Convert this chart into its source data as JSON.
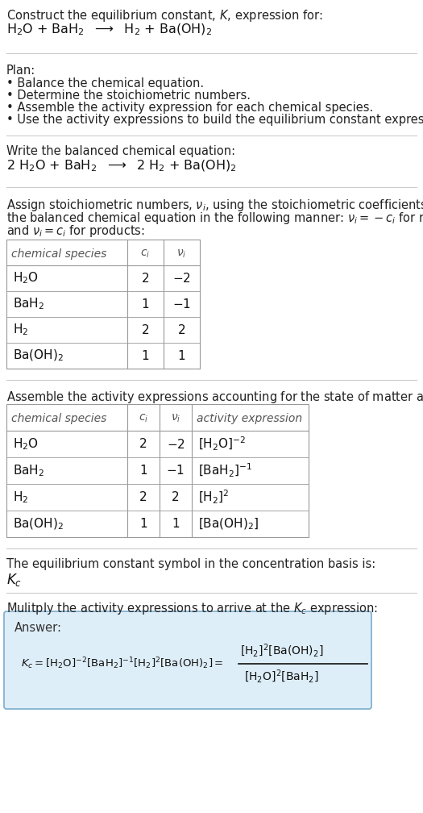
{
  "title_line1": "Construct the equilibrium constant, $K$, expression for:",
  "reaction_unbalanced": "H$_2$O + BaH$_2$  $\\longrightarrow$  H$_2$ + Ba(OH)$_2$",
  "plan_header": "Plan:",
  "plan_bullets": [
    "• Balance the chemical equation.",
    "• Determine the stoichiometric numbers.",
    "• Assemble the activity expression for each chemical species.",
    "• Use the activity expressions to build the equilibrium constant expression."
  ],
  "balanced_header": "Write the balanced chemical equation:",
  "reaction_balanced": "2 H$_2$O + BaH$_2$  $\\longrightarrow$  2 H$_2$ + Ba(OH)$_2$",
  "stoich_lines": [
    "Assign stoichiometric numbers, $\\nu_i$, using the stoichiometric coefficients, $c_i$, from",
    "the balanced chemical equation in the following manner: $\\nu_i = -c_i$ for reactants",
    "and $\\nu_i = c_i$ for products:"
  ],
  "table1_headers": [
    "chemical species",
    "$c_i$",
    "$\\nu_i$"
  ],
  "table1_rows": [
    [
      "H$_2$O",
      "2",
      "$-$2"
    ],
    [
      "BaH$_2$",
      "1",
      "$-$1"
    ],
    [
      "H$_2$",
      "2",
      "2"
    ],
    [
      "Ba(OH)$_2$",
      "1",
      "1"
    ]
  ],
  "activity_header": "Assemble the activity expressions accounting for the state of matter and $\\nu_i$:",
  "table2_headers": [
    "chemical species",
    "$c_i$",
    "$\\nu_i$",
    "activity expression"
  ],
  "table2_rows": [
    [
      "H$_2$O",
      "2",
      "$-$2",
      "[H$_2$O]$^{-2}$"
    ],
    [
      "BaH$_2$",
      "1",
      "$-$1",
      "[BaH$_2$]$^{-1}$"
    ],
    [
      "H$_2$",
      "2",
      "2",
      "[H$_2$]$^2$"
    ],
    [
      "Ba(OH)$_2$",
      "1",
      "1",
      "[Ba(OH)$_2$]"
    ]
  ],
  "kc_header": "The equilibrium constant symbol in the concentration basis is:",
  "kc_symbol": "$K_c$",
  "multiply_header": "Mulitply the activity expressions to arrive at the $K_c$ expression:",
  "answer_label": "Answer:",
  "bg_color": "#ffffff",
  "table_border_color": "#999999",
  "answer_bg_color": "#deeef8",
  "answer_border_color": "#7aadcc",
  "text_color": "#222222",
  "gray_text_color": "#555555",
  "sep_color": "#cccccc"
}
